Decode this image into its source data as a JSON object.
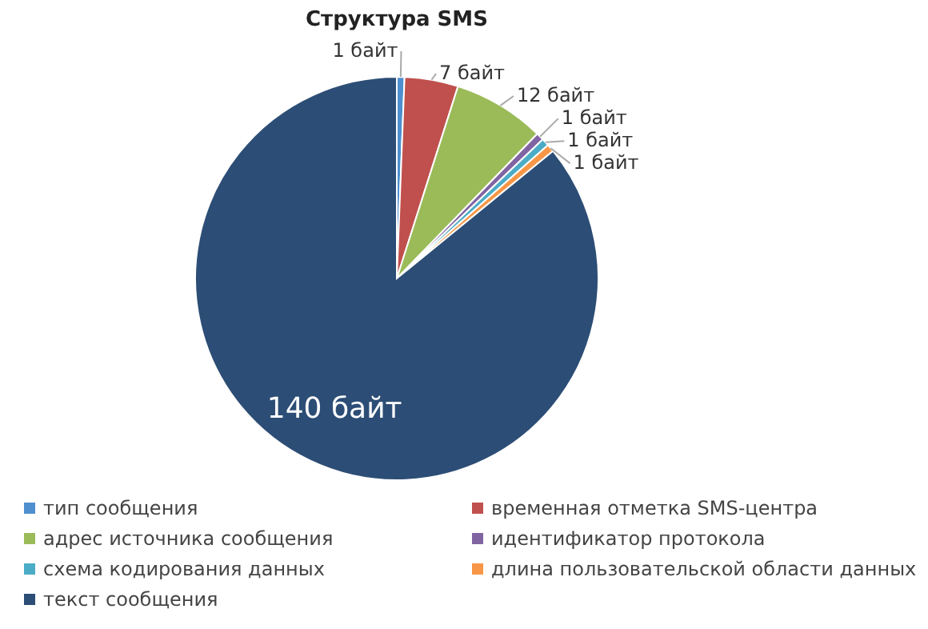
{
  "chart_data": {
    "type": "pie",
    "title": "Структура SMS",
    "categories": [
      "тип сообщения",
      "временная отметка SMS-центра",
      "адрес источника сообщения",
      "идентификатор протокола",
      "схема кодирования данных",
      "длина пользовательской области данных",
      "текст сообщения"
    ],
    "values": [
      1,
      7,
      12,
      1,
      1,
      1,
      140
    ],
    "value_labels": [
      "1 байт",
      "7 байт",
      "12 байт",
      "1 байт",
      "1 байт",
      "1 байт",
      "140 байт"
    ],
    "colors": [
      "#4f8fcf",
      "#c0504d",
      "#9bbb59",
      "#8064a2",
      "#4bacc6",
      "#f79646",
      "#2c4d75"
    ],
    "legend": "bottom"
  }
}
